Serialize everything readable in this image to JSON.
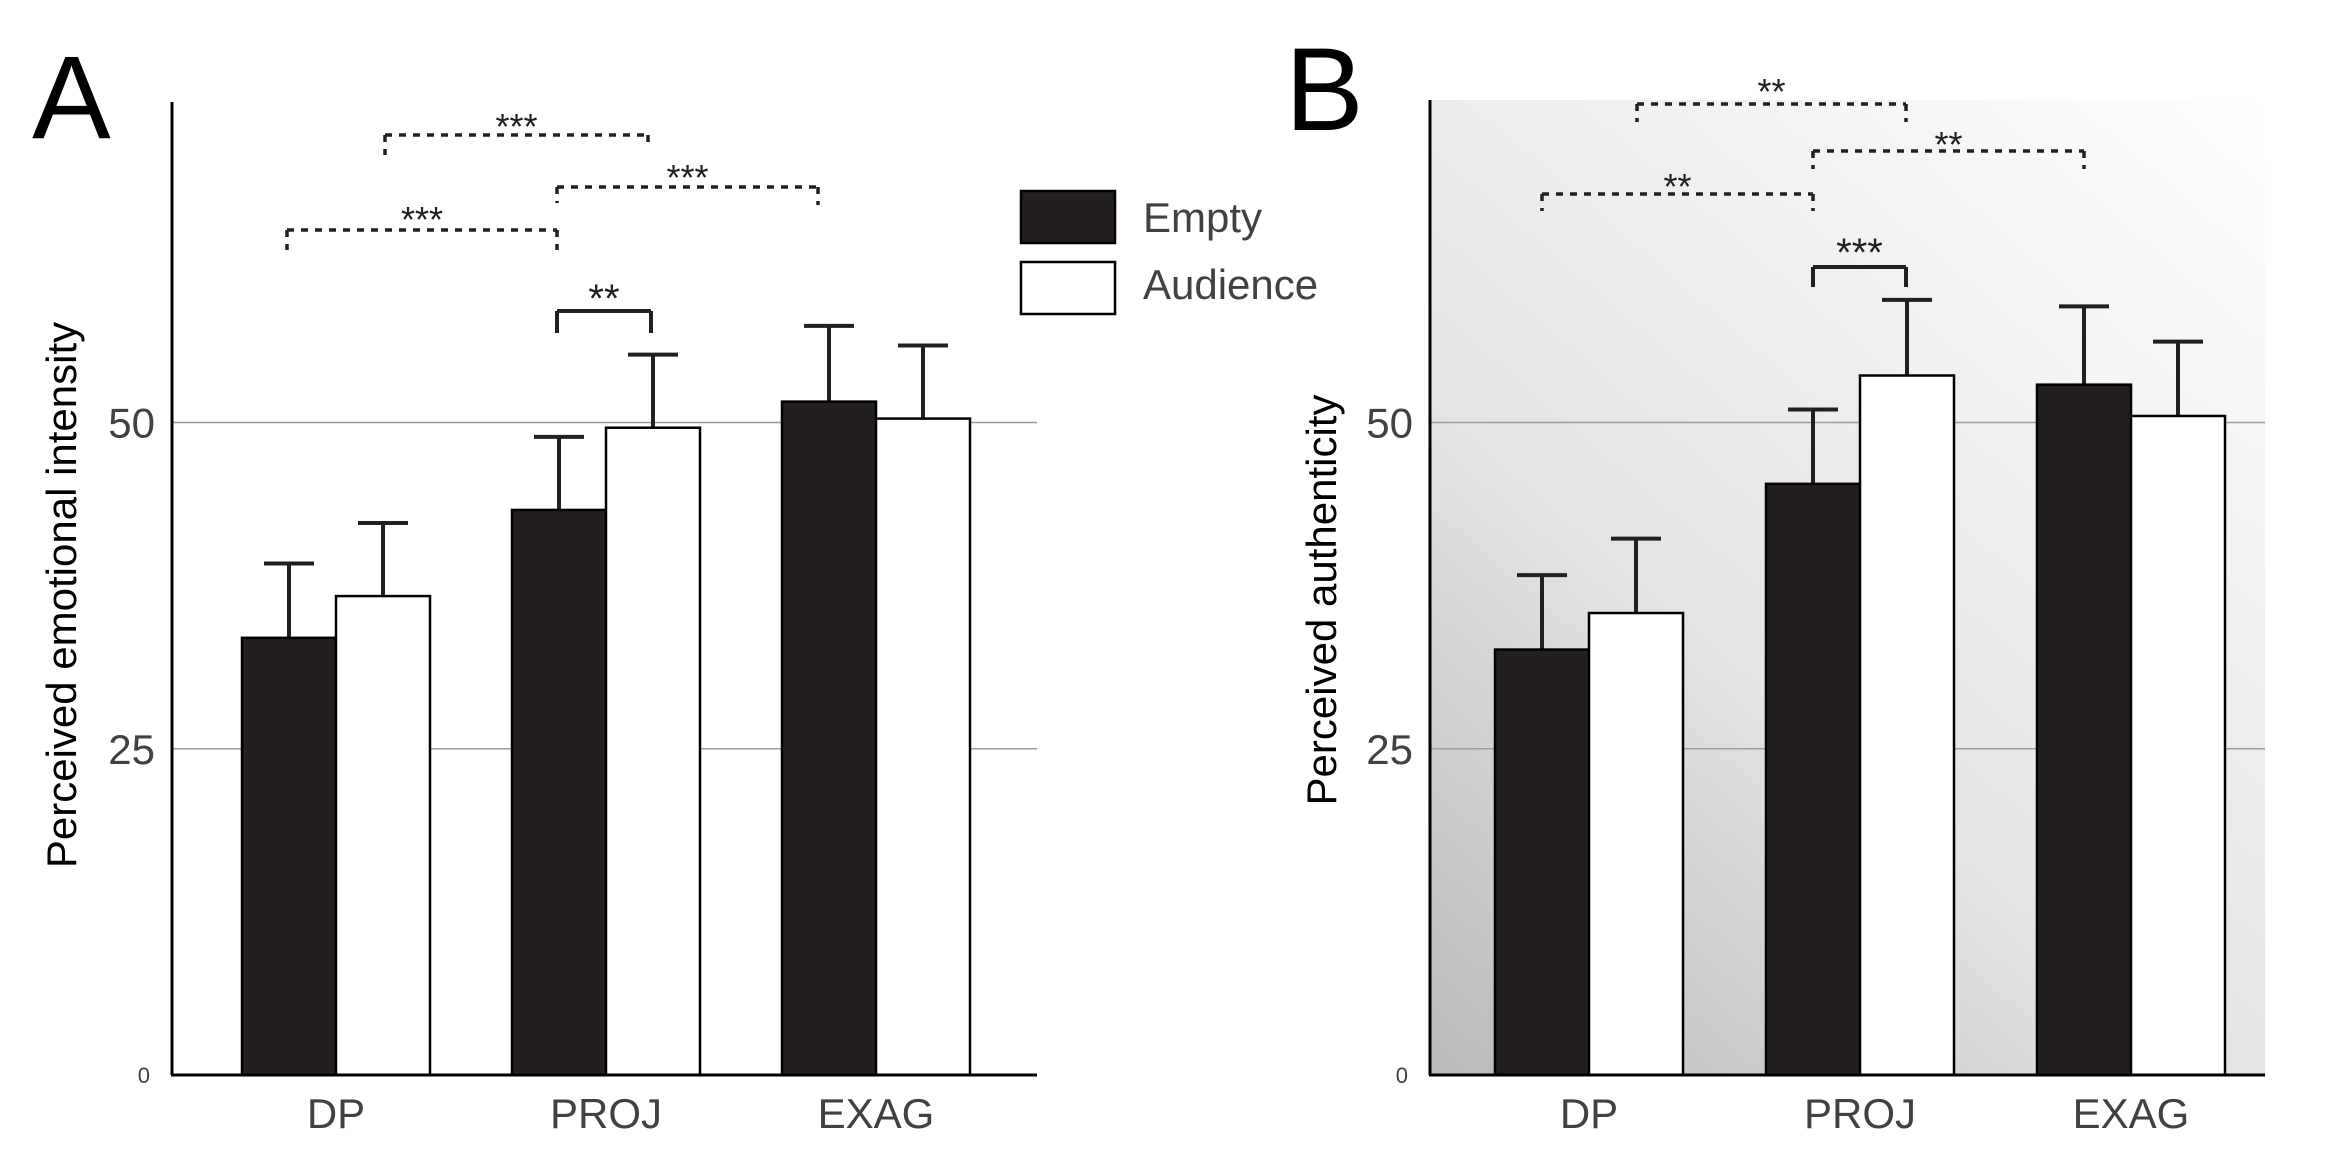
{
  "chart_data": [
    {
      "type": "bar",
      "panel_label": "A",
      "title": "",
      "xlabel": "",
      "ylabel": "Perceived emotional intensity",
      "ylim": [
        0,
        75
      ],
      "yticks": [
        0,
        25,
        50
      ],
      "ytick_labels": [
        "0",
        "25",
        "50"
      ],
      "grid": "horizontal at 25 and 50",
      "categories": [
        "DP",
        "PROJ",
        "EXAG"
      ],
      "series": [
        {
          "name": "Empty",
          "color": "#231f20",
          "values": [
            33.5,
            43.3,
            51.6
          ],
          "errors": [
            5.7,
            5.6,
            5.8
          ]
        },
        {
          "name": "Audience",
          "color": "#ffffff",
          "values": [
            36.7,
            49.6,
            50.3
          ],
          "errors": [
            5.6,
            5.6,
            5.6
          ]
        }
      ],
      "significance": [
        {
          "label": "***",
          "from": "DP:Audience",
          "to": "PROJ:Audience",
          "style": "dotted"
        },
        {
          "label": "***",
          "from": "PROJ:Empty",
          "to": "EXAG:Empty",
          "style": "dotted"
        },
        {
          "label": "***",
          "from": "DP:Empty",
          "to": "PROJ:Empty",
          "style": "dotted"
        },
        {
          "label": "**",
          "from": "PROJ:Empty",
          "to": "PROJ:Audience",
          "style": "solid"
        }
      ]
    },
    {
      "type": "bar",
      "panel_label": "B",
      "title": "",
      "xlabel": "",
      "ylabel": "Perceived authenticity",
      "ylim": [
        0,
        75
      ],
      "yticks": [
        0,
        25,
        50
      ],
      "ytick_labels": [
        "0",
        "25",
        "50"
      ],
      "grid": "horizontal at 25 and 50",
      "categories": [
        "DP",
        "PROJ",
        "EXAG"
      ],
      "series": [
        {
          "name": "Empty",
          "color": "#231f20",
          "values": [
            32.6,
            45.3,
            52.9
          ],
          "errors": [
            5.7,
            5.7,
            6.0
          ]
        },
        {
          "name": "Audience",
          "color": "#ffffff",
          "values": [
            35.4,
            53.6,
            50.5
          ],
          "errors": [
            5.7,
            5.8,
            5.7
          ]
        }
      ],
      "significance": [
        {
          "label": "**",
          "from": "DP:Audience",
          "to": "PROJ:Audience",
          "style": "dotted"
        },
        {
          "label": "**",
          "from": "PROJ:Empty",
          "to": "EXAG:Empty",
          "style": "dotted"
        },
        {
          "label": "**",
          "from": "DP:Empty",
          "to": "PROJ:Empty",
          "style": "dotted"
        },
        {
          "label": "***",
          "from": "PROJ:Empty",
          "to": "PROJ:Audience",
          "style": "solid"
        }
      ]
    }
  ],
  "legend": {
    "items": [
      {
        "label": "Empty",
        "color": "#231f20"
      },
      {
        "label": "Audience",
        "color": "#ffffff"
      }
    ]
  }
}
